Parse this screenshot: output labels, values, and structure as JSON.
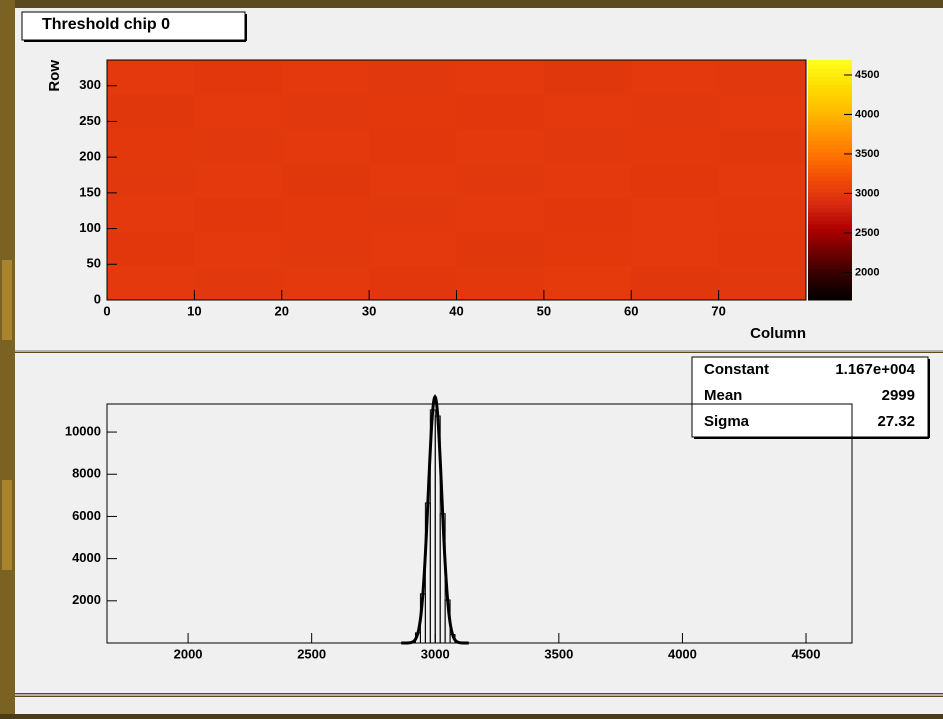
{
  "chart_data": [
    {
      "type": "heatmap",
      "title": "Threshold chip 0",
      "x_label": "Column",
      "y_label": "Row",
      "xbins": [
        0,
        10,
        20,
        30,
        40,
        50,
        60,
        70,
        80
      ],
      "ybins": [
        0,
        48,
        96,
        144,
        192,
        240,
        288,
        336
      ],
      "z": [
        [
          3005,
          2995,
          3010,
          2990,
          3000,
          3015,
          2985,
          2995
        ],
        [
          2990,
          3005,
          2995,
          3010,
          2985,
          3000,
          3005,
          2990
        ],
        [
          3010,
          2990,
          3000,
          2995,
          3005,
          2990,
          3010,
          3000
        ],
        [
          2995,
          3010,
          2985,
          3005,
          2995,
          3010,
          2990,
          3005
        ],
        [
          3000,
          2995,
          3010,
          2990,
          3005,
          2995,
          3000,
          2985
        ],
        [
          2985,
          3005,
          2995,
          3000,
          2990,
          3010,
          2995,
          3005
        ],
        [
          3005,
          2990,
          3005,
          2995,
          3010,
          2985,
          3005,
          2995
        ]
      ],
      "xlim": [
        0,
        80
      ],
      "xticks": [
        0,
        10,
        20,
        30,
        40,
        50,
        60,
        70
      ],
      "ylim": [
        0,
        336
      ],
      "yticks": [
        0,
        50,
        100,
        150,
        200,
        250,
        300
      ],
      "zlim": [
        1650,
        4690
      ],
      "zticks": [
        2000,
        2500,
        3000,
        3500,
        4000,
        4500
      ],
      "palette": [
        "#000000",
        "#300000",
        "#700000",
        "#b00000",
        "#d82a10",
        "#f04a08",
        "#ff7000",
        "#ff9800",
        "#ffc000",
        "#ffe000",
        "#ffff20"
      ]
    },
    {
      "type": "histogram",
      "color": "#000000",
      "bins": [
        2880,
        2900,
        2920,
        2940,
        2960,
        2980,
        3000,
        3020,
        3040,
        3060,
        3080,
        3100,
        3120
      ],
      "counts": [
        4,
        58,
        480,
        2330,
        6640,
        11050,
        10760,
        6130,
        2040,
        400,
        45,
        3
      ],
      "xlim": [
        1672,
        4686
      ],
      "xticks": [
        2000,
        2500,
        3000,
        3500,
        4000,
        4500
      ],
      "ylim": [
        0,
        11330
      ],
      "yticks": [
        2000,
        4000,
        6000,
        8000,
        10000
      ],
      "stats": {
        "labels": [
          "Constant",
          "Mean",
          "Sigma"
        ],
        "values": [
          {
            "value": 11670,
            "label": "1.167e+004"
          },
          2999,
          27.32
        ]
      }
    }
  ]
}
